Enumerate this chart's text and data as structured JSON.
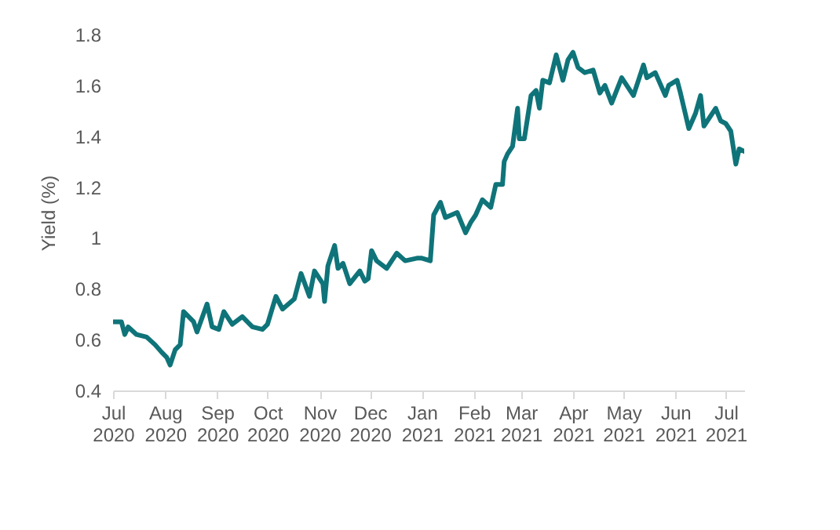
{
  "chart_data": {
    "type": "line",
    "ylabel": "Yield (%)",
    "x": [
      "2020-07-01",
      "2020-07-06",
      "2020-07-08",
      "2020-07-10",
      "2020-07-15",
      "2020-07-21",
      "2020-07-26",
      "2020-07-30",
      "2020-08-02",
      "2020-08-04",
      "2020-08-07",
      "2020-08-10",
      "2020-08-12",
      "2020-08-18",
      "2020-08-20",
      "2020-08-26",
      "2020-08-29",
      "2020-09-02",
      "2020-09-05",
      "2020-09-10",
      "2020-09-16",
      "2020-09-22",
      "2020-09-28",
      "2020-10-01",
      "2020-10-06",
      "2020-10-10",
      "2020-10-17",
      "2020-10-21",
      "2020-10-26",
      "2020-10-29",
      "2020-11-03",
      "2020-11-04",
      "2020-11-06",
      "2020-11-10",
      "2020-11-12",
      "2020-11-15",
      "2020-11-19",
      "2020-11-25",
      "2020-11-28",
      "2020-11-30",
      "2020-12-02",
      "2020-12-05",
      "2020-12-11",
      "2020-12-17",
      "2020-12-22",
      "2020-12-29",
      "2021-01-01",
      "2021-01-06",
      "2021-01-08",
      "2021-01-12",
      "2021-01-15",
      "2021-01-22",
      "2021-01-27",
      "2021-01-30",
      "2021-02-02",
      "2021-02-06",
      "2021-02-11",
      "2021-02-14",
      "2021-02-18",
      "2021-02-19",
      "2021-02-21",
      "2021-02-24",
      "2021-02-27",
      "2021-02-28",
      "2021-03-03",
      "2021-03-07",
      "2021-03-10",
      "2021-03-12",
      "2021-03-14",
      "2021-03-18",
      "2021-03-22",
      "2021-03-26",
      "2021-03-29",
      "2021-04-01",
      "2021-04-04",
      "2021-04-08",
      "2021-04-13",
      "2021-04-17",
      "2021-04-20",
      "2021-04-24",
      "2021-04-30",
      "2021-05-07",
      "2021-05-13",
      "2021-05-15",
      "2021-05-20",
      "2021-05-26",
      "2021-05-28",
      "2021-06-02",
      "2021-06-04",
      "2021-06-09",
      "2021-06-13",
      "2021-06-16",
      "2021-06-18",
      "2021-06-25",
      "2021-06-28",
      "2021-07-01",
      "2021-07-04",
      "2021-07-07",
      "2021-07-09",
      "2021-07-12"
    ],
    "series": [
      {
        "color": "#0f7479",
        "values": [
          0.67,
          0.67,
          0.62,
          0.65,
          0.62,
          0.61,
          0.58,
          0.55,
          0.53,
          0.5,
          0.56,
          0.58,
          0.71,
          0.67,
          0.63,
          0.74,
          0.65,
          0.64,
          0.71,
          0.66,
          0.69,
          0.65,
          0.64,
          0.66,
          0.77,
          0.72,
          0.76,
          0.86,
          0.77,
          0.87,
          0.82,
          0.75,
          0.89,
          0.97,
          0.88,
          0.9,
          0.82,
          0.87,
          0.83,
          0.84,
          0.95,
          0.91,
          0.88,
          0.94,
          0.91,
          0.92,
          0.92,
          0.91,
          1.09,
          1.14,
          1.08,
          1.1,
          1.02,
          1.06,
          1.09,
          1.15,
          1.12,
          1.21,
          1.21,
          1.3,
          1.33,
          1.36,
          1.51,
          1.39,
          1.39,
          1.56,
          1.58,
          1.51,
          1.62,
          1.61,
          1.72,
          1.62,
          1.7,
          1.73,
          1.67,
          1.65,
          1.66,
          1.57,
          1.6,
          1.53,
          1.63,
          1.56,
          1.68,
          1.63,
          1.65,
          1.56,
          1.6,
          1.62,
          1.57,
          1.43,
          1.49,
          1.56,
          1.44,
          1.51,
          1.46,
          1.45,
          1.42,
          1.29,
          1.35,
          1.34
        ]
      }
    ],
    "xlim": [
      "2020-07-01",
      "2021-07-12"
    ],
    "xticks": [
      {
        "value": "2020-07",
        "label": "Jul 2020"
      },
      {
        "value": "2020-08",
        "label": "Aug 2020"
      },
      {
        "value": "2020-09",
        "label": "Sep 2020"
      },
      {
        "value": "2020-10",
        "label": "Oct 2020"
      },
      {
        "value": "2020-11",
        "label": "Nov 2020"
      },
      {
        "value": "2020-12",
        "label": "Dec 2020"
      },
      {
        "value": "2021-01",
        "label": "Jan 2021"
      },
      {
        "value": "2021-02",
        "label": "Feb 2021"
      },
      {
        "value": "2021-03",
        "label": "Mar 2021"
      },
      {
        "value": "2021-04",
        "label": "Apr 2021"
      },
      {
        "value": "2021-05",
        "label": "May 2021"
      },
      {
        "value": "2021-06",
        "label": "Jun 2021"
      },
      {
        "value": "2021-07",
        "label": "Jul 2021"
      }
    ],
    "ylim": [
      0.4,
      1.8
    ],
    "yticks": [
      0.4,
      0.6,
      0.8,
      1,
      1.2,
      1.4,
      1.6,
      1.8
    ],
    "grid": false
  }
}
